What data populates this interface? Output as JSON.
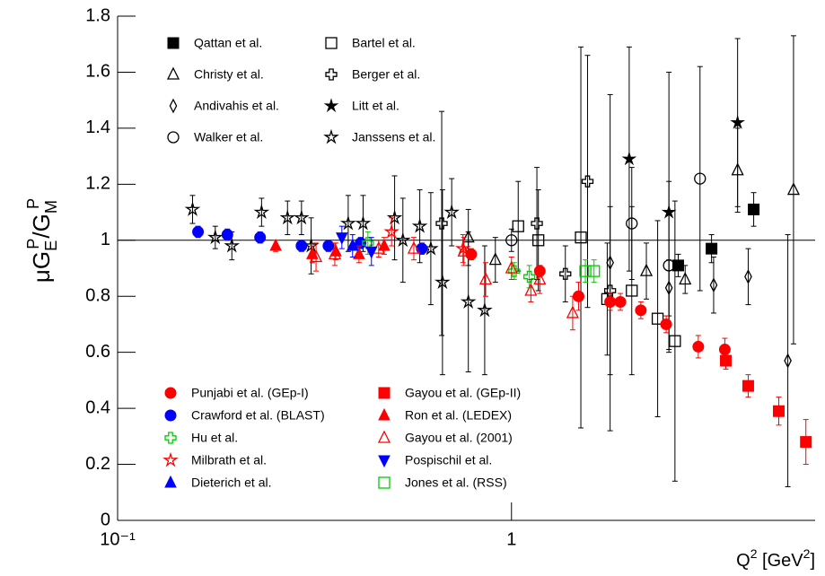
{
  "chart_data": {
    "type": "scatter",
    "ylabel": [
      {
        "text": "μG"
      },
      {
        "text": "E",
        "script": "sub"
      },
      {
        "text": "P",
        "script": "sup"
      },
      {
        "text": "/G"
      },
      {
        "text": "M",
        "script": "sub"
      },
      {
        "text": "P",
        "script": "sup"
      }
    ],
    "xlabel": [
      {
        "text": "Q"
      },
      {
        "text": "2",
        "script": "sup"
      },
      {
        "text": " [GeV"
      },
      {
        "text": "2",
        "script": "sup"
      },
      {
        "text": "]"
      }
    ],
    "xscale": "log",
    "xlim": [
      0.1,
      5.9
    ],
    "xticks": [
      {
        "value": 0.1,
        "label": "10⁻¹"
      },
      1
    ],
    "ylim": [
      0,
      1.8
    ],
    "yticks": [
      0,
      0.2,
      0.4,
      0.6,
      0.8,
      1,
      1.2,
      1.4,
      1.6,
      1.8
    ],
    "hline": 1,
    "series": [
      {
        "name": "Qattan et al.",
        "color": "#000000",
        "marker": "square",
        "filled": true,
        "x": [
          2.65,
          3.22,
          4.12
        ],
        "values": [
          0.91,
          0.97,
          1.11
        ],
        "errors": [
          0.04,
          0.05,
          0.06
        ]
      },
      {
        "name": "Bartel et al.",
        "color": "#000000",
        "marker": "square",
        "filled": false,
        "x": [
          1.04,
          1.17,
          1.5,
          1.75,
          2.02,
          2.35,
          2.6
        ],
        "values": [
          1.05,
          1.0,
          1.01,
          0.79,
          0.82,
          0.72,
          0.64
        ],
        "errors": [
          0.16,
          0.18,
          0.68,
          0.2,
          0.3,
          0.35,
          0.5
        ]
      },
      {
        "name": "Christy et al.",
        "color": "#000000",
        "marker": "triangle-up",
        "filled": false,
        "x": [
          0.777,
          0.91,
          2.2,
          2.76,
          3.75,
          5.2
        ],
        "values": [
          1.01,
          0.93,
          0.89,
          0.86,
          1.25,
          1.18
        ],
        "errors": [
          0.1,
          0.08,
          0.1,
          0.05,
          0.15,
          0.55
        ]
      },
      {
        "name": "Berger et al.",
        "color": "#000000",
        "marker": "cross",
        "filled": false,
        "x": [
          0.665,
          1.16,
          1.37,
          1.56,
          1.78
        ],
        "values": [
          1.06,
          1.06,
          0.88,
          1.21,
          0.82
        ],
        "errors": [
          0.4,
          0.2,
          0.1,
          0.45,
          0.3
        ]
      },
      {
        "name": "Andivahis et al.",
        "color": "#000000",
        "marker": "diamond",
        "filled": false,
        "x": [
          1.78,
          2.51,
          3.26,
          3.99,
          5.03
        ],
        "values": [
          0.92,
          0.83,
          0.84,
          0.87,
          0.57
        ],
        "errors": [
          0.6,
          0.1,
          0.1,
          0.1,
          0.45
        ]
      },
      {
        "name": "Litt et al.",
        "color": "#000000",
        "marker": "star",
        "filled": true,
        "x": [
          1.99,
          2.51,
          3.75
        ],
        "values": [
          1.29,
          1.1,
          1.42
        ],
        "errors": [
          0.4,
          0.5,
          0.3
        ]
      },
      {
        "name": "Walker et al.",
        "color": "#000000",
        "marker": "circle",
        "filled": false,
        "x": [
          1.0,
          2.02,
          2.51,
          3.01
        ],
        "values": [
          1.0,
          1.06,
          0.91,
          1.22
        ],
        "errors": [
          0.04,
          0.2,
          0.3,
          0.4
        ]
      },
      {
        "name": "Janssens et al.",
        "color": "#000000",
        "marker": "star",
        "filled": false,
        "x": [
          0.155,
          0.177,
          0.195,
          0.232,
          0.27,
          0.293,
          0.31,
          0.385,
          0.42,
          0.505,
          0.53,
          0.585,
          0.624,
          0.668,
          0.705,
          0.777,
          0.855
        ],
        "values": [
          1.11,
          1.01,
          0.98,
          1.1,
          1.08,
          1.08,
          0.98,
          1.06,
          1.06,
          1.08,
          1.0,
          1.05,
          0.97,
          0.85,
          1.1,
          0.78,
          0.75
        ],
        "errors": [
          0.05,
          0.04,
          0.05,
          0.05,
          0.06,
          0.06,
          0.1,
          0.1,
          0.1,
          0.15,
          0.15,
          0.13,
          0.2,
          0.33,
          0.12,
          0.25,
          0.23
        ]
      },
      {
        "name": "Punjabi et al. (GEp-I)",
        "color": "#ff0000",
        "marker": "circle",
        "filled": true,
        "x": [
          0.79,
          1.18,
          1.48,
          1.78,
          1.89,
          2.13,
          2.47,
          2.98,
          3.48
        ],
        "values": [
          0.95,
          0.89,
          0.8,
          0.78,
          0.78,
          0.75,
          0.7,
          0.62,
          0.61
        ],
        "errors": [
          0.02,
          0.02,
          0.05,
          0.03,
          0.03,
          0.03,
          0.03,
          0.04,
          0.04
        ]
      },
      {
        "name": "Gayou et al. (GEp-II)",
        "color": "#ff0000",
        "marker": "square",
        "filled": true,
        "x": [
          3.5,
          3.99,
          4.77,
          5.59
        ],
        "values": [
          0.57,
          0.48,
          0.39,
          0.28
        ],
        "errors": [
          0.03,
          0.04,
          0.05,
          0.08
        ]
      },
      {
        "name": "Crawford et al. (BLAST)",
        "color": "#0000ff",
        "marker": "circle",
        "filled": true,
        "x": [
          0.16,
          0.19,
          0.23,
          0.293,
          0.343,
          0.414,
          0.592
        ],
        "values": [
          1.03,
          1.02,
          1.01,
          0.98,
          0.98,
          0.99,
          0.97
        ],
        "errors": [
          0.02,
          0.02,
          0.02,
          0.02,
          0.02,
          0.02,
          0.02
        ]
      },
      {
        "name": "Ron et al. (LEDEX)",
        "color": "#ff0000",
        "marker": "triangle-up",
        "filled": true,
        "x": [
          0.252,
          0.312,
          0.358,
          0.41,
          0.475
        ],
        "values": [
          0.98,
          0.95,
          0.96,
          0.95,
          0.98
        ],
        "errors": [
          0.02,
          0.03,
          0.03,
          0.03,
          0.03
        ]
      },
      {
        "name": "Hu et al.",
        "color": "#00cc00",
        "marker": "cross",
        "filled": false,
        "x": [
          0.432,
          1.016,
          1.11
        ],
        "values": [
          0.99,
          0.89,
          0.87
        ],
        "errors": [
          0.04,
          0.03,
          0.04
        ]
      },
      {
        "name": "Gayou et al. (2001)",
        "color": "#ff0000",
        "marker": "triangle-up",
        "filled": false,
        "x": [
          0.319,
          0.356,
          0.46,
          0.565,
          0.757,
          0.86,
          1.0,
          1.12,
          1.18,
          1.43
        ],
        "values": [
          0.94,
          0.95,
          0.97,
          0.97,
          0.96,
          0.86,
          0.9,
          0.82,
          0.86,
          0.74
        ],
        "errors": [
          0.05,
          0.04,
          0.03,
          0.04,
          0.05,
          0.06,
          0.04,
          0.04,
          0.05,
          0.06
        ]
      },
      {
        "name": "Milbrath et al.",
        "color": "#ff0000",
        "marker": "star",
        "filled": false,
        "x": [
          0.496,
          0.753
        ],
        "values": [
          1.03,
          0.97
        ],
        "errors": [
          0.05,
          0.05
        ]
      },
      {
        "name": "Pospischil et al.",
        "color": "#0000ff",
        "marker": "triangle-down",
        "filled": true,
        "x": [
          0.371,
          0.441
        ],
        "values": [
          1.01,
          0.96
        ],
        "errors": [
          0.04,
          0.05
        ]
      },
      {
        "name": "Dieterich et al.",
        "color": "#0000ff",
        "marker": "triangle-up",
        "filled": true,
        "x": [
          0.395
        ],
        "values": [
          0.98
        ],
        "errors": [
          0.04
        ]
      },
      {
        "name": "Jones et al. (RSS)",
        "color": "#00cc00",
        "marker": "square",
        "filled": false,
        "x": [
          1.54,
          1.62
        ],
        "values": [
          0.89,
          0.89
        ],
        "errors": [
          0.04,
          0.04
        ]
      }
    ]
  }
}
